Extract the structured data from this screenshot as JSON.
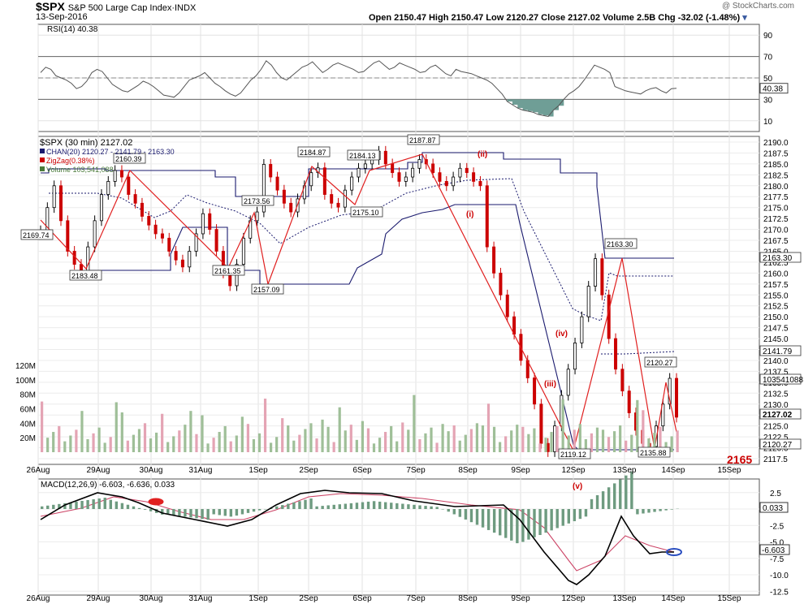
{
  "header": {
    "symbol": "$SPX",
    "name": "S&P 500 Large Cap Index",
    "exchange": "INDX",
    "date": "13-Sep-2016",
    "watermark": "@ StockCharts.com",
    "ohlc": "Open 2150.47   High 2150.47   Low 2120.27   Close 2127.02   Volume 2.5B   Chg -32.02 (-1.48%)"
  },
  "rsi_panel": {
    "label": "RSI(14) 40.38",
    "ticks": [
      "90",
      "70",
      "50",
      "30",
      "10"
    ],
    "last_label": "40.38",
    "last_value": 40.38
  },
  "price_panel": {
    "legend": [
      {
        "text": "$SPX (30 min) 2127.02",
        "color": "#000000"
      },
      {
        "text": "CHAN(20) 2120.27 - 2141.79 - 2163.30",
        "color": "#1a1a6e"
      },
      {
        "text": "ZigZag(0.38%)",
        "color": "#cc0000"
      },
      {
        "text": "Volume 103,541,088",
        "color": "#4a7a3a"
      }
    ],
    "y_ticks": [
      "2190.0",
      "2187.5",
      "2185.0",
      "2182.5",
      "2180.0",
      "2177.5",
      "2175.0",
      "2172.5",
      "2170.0",
      "2167.5",
      "2165.0",
      "2162.5",
      "2160.0",
      "2157.5",
      "2155.0",
      "2152.5",
      "2150.0",
      "2147.5",
      "2145.0",
      "2142.5",
      "2140.0",
      "2137.5",
      "2135.0",
      "2132.5",
      "2130.0",
      "2127.5",
      "2125.0",
      "2122.5",
      "2120.0",
      "2117.5"
    ],
    "vol_ticks": [
      "120M",
      "100M",
      "80M",
      "60M",
      "40M",
      "20M"
    ],
    "right_labels": {
      "chan_upper": "2163.30",
      "chan_mid": "2141.79",
      "volume": "103541088",
      "close": "2127.02",
      "chan_lower": "2120.27"
    },
    "annotations": [
      "2169.74",
      "2183.48",
      "2160.39",
      "2161.35",
      "2173.56",
      "2157.09",
      "2184.87",
      "2184.13",
      "2175.10",
      "2187.87",
      "2119.12",
      "2163.30",
      "2135.88",
      "2120.27"
    ],
    "waves": [
      "(i)",
      "(ii)",
      "(iii)",
      "(iv)",
      "(v)"
    ],
    "target": "2165"
  },
  "macd_panel": {
    "label": "MACD(12,26,9) -6.603, -6.636, 0.033",
    "ticks": [
      "2.5",
      "0.0",
      "-2.5",
      "-5.0",
      "-7.5",
      "-10.0",
      "-12.5"
    ],
    "right_labels": {
      "hist": "0.033",
      "macd": "-6.603"
    }
  },
  "x_labels": [
    "26Aug",
    "29Aug",
    "30Aug",
    "31Aug",
    "1Sep",
    "2Sep",
    "6Sep",
    "7Sep",
    "8Sep",
    "9Sep",
    "12Sep",
    "13Sep",
    "14Sep",
    "15Sep"
  ],
  "colors": {
    "up": "#000000",
    "down": "#cc0000",
    "chan": "#1a1a6e",
    "zigzag": "#e02020",
    "vol_up": "#9fbf98",
    "vol_down": "#e4a4b4",
    "rsi_fill": "#6f9e96",
    "macd_hist": "#6e9b80",
    "signal": "#cc4466"
  },
  "chart_data": {
    "type": "line",
    "title": "$SPX S&P 500 Large Cap Index (30 min)",
    "x_categories": [
      "26Aug",
      "29Aug",
      "30Aug",
      "31Aug",
      "1Sep",
      "2Sep",
      "6Sep",
      "7Sep",
      "8Sep",
      "9Sep",
      "12Sep",
      "13Sep"
    ],
    "series": [
      {
        "name": "ZigZag(0.38%)",
        "points": [
          [
            "26Aug",
            2169.74
          ],
          [
            "29Aug",
            2160.39
          ],
          [
            "29Aug",
            2183.48
          ],
          [
            "31Aug",
            2161.35
          ],
          [
            "1Sep",
            2173.56
          ],
          [
            "1Sep",
            2157.09
          ],
          [
            "2Sep",
            2184.87
          ],
          [
            "6Sep",
            2175.1
          ],
          [
            "6Sep",
            2184.13
          ],
          [
            "7Sep",
            2187.87
          ],
          [
            "12Sep",
            2119.12
          ],
          [
            "13Sep",
            2163.3
          ],
          [
            "13Sep",
            2120.27
          ],
          [
            "13Sep",
            2135.88
          ]
        ]
      },
      {
        "name": "CHAN(20)",
        "last": {
          "lower": 2120.27,
          "mid": 2141.79,
          "upper": 2163.3
        }
      },
      {
        "name": "RSI(14)",
        "last": 40.38
      },
      {
        "name": "MACD(12,26,9)",
        "last": {
          "macd": -6.603,
          "signal": -6.636,
          "hist": 0.033
        }
      }
    ],
    "ylim_price": [
      2116,
      2191
    ],
    "ylim_rsi": [
      0,
      100
    ],
    "ylim_macd": [
      -13.5,
      4
    ]
  }
}
